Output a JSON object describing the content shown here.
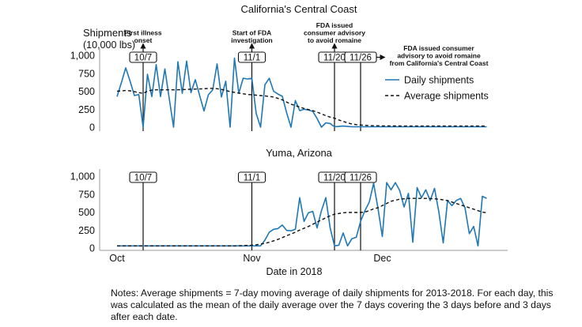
{
  "colors": {
    "daily": "#1f77b4",
    "average": "#111111",
    "axis": "#999999"
  },
  "dates": [
    "10/1",
    "10/2",
    "10/3",
    "10/4",
    "10/5",
    "10/6",
    "10/7",
    "10/8",
    "10/9",
    "10/10",
    "10/11",
    "10/12",
    "10/13",
    "10/14",
    "10/15",
    "10/16",
    "10/17",
    "10/18",
    "10/19",
    "10/20",
    "10/21",
    "10/22",
    "10/23",
    "10/24",
    "10/25",
    "10/26",
    "10/27",
    "10/28",
    "10/29",
    "10/30",
    "10/31",
    "11/1",
    "11/2",
    "11/3",
    "11/4",
    "11/5",
    "11/6",
    "11/7",
    "11/8",
    "11/9",
    "11/10",
    "11/11",
    "11/12",
    "11/13",
    "11/14",
    "11/15",
    "11/16",
    "11/17",
    "11/18",
    "11/19",
    "11/20",
    "11/21",
    "11/22",
    "11/23",
    "11/24",
    "11/25",
    "11/26",
    "11/27",
    "11/28",
    "11/29",
    "11/30",
    "12/1",
    "12/2",
    "12/3",
    "12/4",
    "12/5",
    "12/6",
    "12/7",
    "12/8",
    "12/9",
    "12/10",
    "12/11",
    "12/12",
    "12/13",
    "12/14",
    "12/15",
    "12/16",
    "12/17",
    "12/18",
    "12/19",
    "12/20",
    "12/21",
    "12/22",
    "12/23",
    "12/24",
    "12/25"
  ],
  "chart_data": [
    {
      "type": "line",
      "title": "California's Central Coast",
      "ylabel": "Shipments (10,000 lbs)",
      "ylabel_lines": [
        "Shipments",
        "(10,000 lbs)"
      ],
      "yticks": [
        "0",
        "250",
        "500",
        "750",
        "1,000"
      ],
      "ytick_values": [
        0,
        250,
        500,
        750,
        1000
      ],
      "ylim": [
        0,
        1000
      ],
      "grid": false,
      "legend_placement": "right",
      "legend": [
        "Daily shipments",
        "Average shipments"
      ],
      "series": [
        {
          "name": "Daily shipments",
          "style": "solid",
          "values": [
            425,
            620,
            825,
            640,
            440,
            455,
            0,
            735,
            425,
            870,
            425,
            810,
            400,
            0,
            910,
            470,
            920,
            480,
            660,
            440,
            225,
            450,
            520,
            880,
            420,
            640,
            0,
            960,
            470,
            680,
            670,
            680,
            190,
            0,
            590,
            680,
            500,
            460,
            430,
            200,
            0,
            370,
            230,
            250,
            240,
            220,
            120,
            0,
            60,
            50,
            5,
            10,
            15,
            10,
            5,
            5,
            5,
            5,
            5,
            5,
            5,
            5,
            5,
            5,
            5,
            5,
            5,
            5,
            5,
            5,
            5,
            5,
            5,
            5,
            5,
            5,
            5,
            5,
            5,
            5,
            5,
            5,
            5,
            5,
            5,
            5
          ]
        },
        {
          "name": "Average shipments",
          "style": "dashed",
          "values": [
            500,
            505,
            510,
            505,
            495,
            480,
            470,
            500,
            515,
            520,
            520,
            520,
            520,
            520,
            520,
            522,
            525,
            528,
            530,
            532,
            535,
            538,
            540,
            535,
            525,
            510,
            495,
            485,
            475,
            465,
            455,
            450,
            445,
            440,
            435,
            428,
            420,
            400,
            380,
            350,
            320,
            300,
            280,
            260,
            245,
            230,
            210,
            185,
            160,
            140,
            125,
            100,
            80,
            60,
            45,
            35,
            30,
            25,
            22,
            20,
            20,
            18,
            18,
            17,
            16,
            16,
            15,
            15,
            15,
            15,
            15,
            15,
            15,
            15,
            15,
            15,
            15,
            15,
            15,
            15,
            15,
            15,
            15,
            15,
            15,
            15
          ]
        }
      ],
      "events": [
        {
          "date": "10/7",
          "label": "10/7",
          "annotation": [
            "First illness",
            "onset"
          ],
          "arrow": "up"
        },
        {
          "date": "11/1",
          "label": "11/1",
          "annotation": [
            "Start of FDA",
            "investigation"
          ],
          "arrow": "up"
        },
        {
          "date": "11/20",
          "label": "11/20",
          "annotation": [
            "FDA issued",
            "consumer advisory",
            "to avoid romaine"
          ],
          "arrow": "up"
        },
        {
          "date": "11/26",
          "label": "11/26",
          "annotation": [
            "FDA issued consumer",
            "advisory to avoid romaine",
            "from California's Central Coast"
          ],
          "arrow": "right"
        }
      ]
    },
    {
      "type": "line",
      "title": "Yuma, Arizona",
      "xlabel": "Date in 2018",
      "xticks": [
        "Oct",
        "Nov",
        "Dec"
      ],
      "xtick_dates": [
        "10/1",
        "11/1",
        "12/1"
      ],
      "yticks": [
        "0",
        "250",
        "500",
        "750",
        "1,000"
      ],
      "ytick_values": [
        0,
        250,
        500,
        750,
        1000
      ],
      "ylim": [
        0,
        1000
      ],
      "grid": false,
      "series": [
        {
          "name": "Daily shipments",
          "style": "solid",
          "values": [
            30,
            30,
            30,
            30,
            30,
            30,
            30,
            30,
            30,
            30,
            30,
            30,
            30,
            30,
            30,
            30,
            30,
            30,
            30,
            30,
            30,
            30,
            30,
            30,
            30,
            30,
            30,
            30,
            30,
            30,
            30,
            30,
            30,
            30,
            110,
            220,
            260,
            270,
            320,
            245,
            240,
            260,
            700,
            370,
            490,
            510,
            280,
            520,
            700,
            280,
            30,
            40,
            210,
            30,
            130,
            150,
            370,
            520,
            640,
            900,
            550,
            160,
            910,
            810,
            910,
            800,
            570,
            760,
            80,
            840,
            700,
            810,
            660,
            830,
            500,
            70,
            660,
            590,
            660,
            690,
            560,
            200,
            300,
            30,
            720,
            690
          ]
        },
        {
          "name": "Average shipments",
          "style": "dashed",
          "values": [
            30,
            30,
            30,
            30,
            30,
            30,
            30,
            30,
            30,
            30,
            30,
            30,
            30,
            30,
            30,
            30,
            30,
            30,
            30,
            30,
            30,
            30,
            30,
            30,
            30,
            30,
            30,
            30,
            32,
            34,
            36,
            40,
            45,
            55,
            65,
            80,
            100,
            120,
            145,
            170,
            195,
            220,
            250,
            275,
            300,
            330,
            360,
            390,
            420,
            450,
            470,
            480,
            490,
            495,
            495,
            495,
            495,
            500,
            520,
            545,
            560,
            590,
            620,
            650,
            665,
            680,
            685,
            690,
            690,
            690,
            690,
            690,
            688,
            685,
            680,
            670,
            660,
            640,
            620,
            600,
            580,
            560,
            540,
            520,
            500,
            490
          ]
        }
      ],
      "events": [
        {
          "date": "10/7",
          "label": "10/7"
        },
        {
          "date": "11/1",
          "label": "11/1"
        },
        {
          "date": "11/20",
          "label": "11/20"
        },
        {
          "date": "11/26",
          "label": "11/26"
        }
      ]
    }
  ],
  "notes": "Notes: Average shipments = 7-day moving average of daily shipments for 2013-2018. For each day, this was calculated as the mean of the daily average over the 7 days covering the 3 days before and 3 days after each date."
}
